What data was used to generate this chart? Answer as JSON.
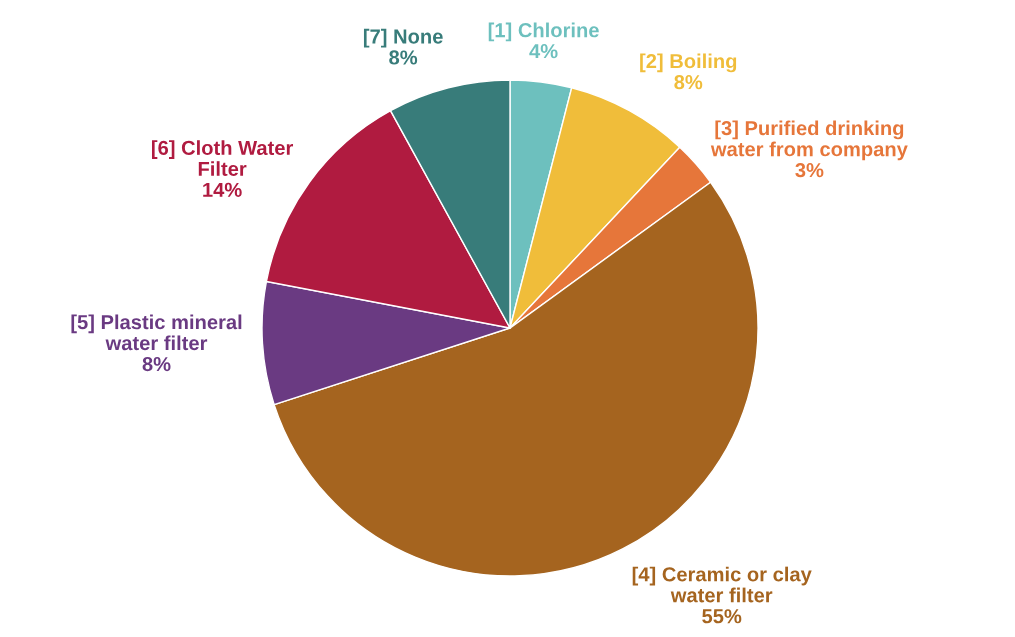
{
  "chart_data": {
    "type": "pie",
    "categories": [
      "[1] Chlorine",
      "[2] Boiling",
      "[3] Purified drinking\nwater from company",
      "[4] Ceramic or clay\nwater filter",
      "[5] Plastic mineral\nwater filter",
      "[6] Cloth Water\nFilter",
      "[7] None"
    ],
    "values": [
      4,
      8,
      3,
      55,
      8,
      14,
      8
    ],
    "value_labels": [
      "4%",
      "8%",
      "3%",
      "55%",
      "8%",
      "14%",
      "8%"
    ],
    "colors": [
      "#6dc0be",
      "#f0bd3a",
      "#e6763a",
      "#a5641f",
      "#6a3a82",
      "#b01b40",
      "#387c7a"
    ],
    "legend": false
  }
}
